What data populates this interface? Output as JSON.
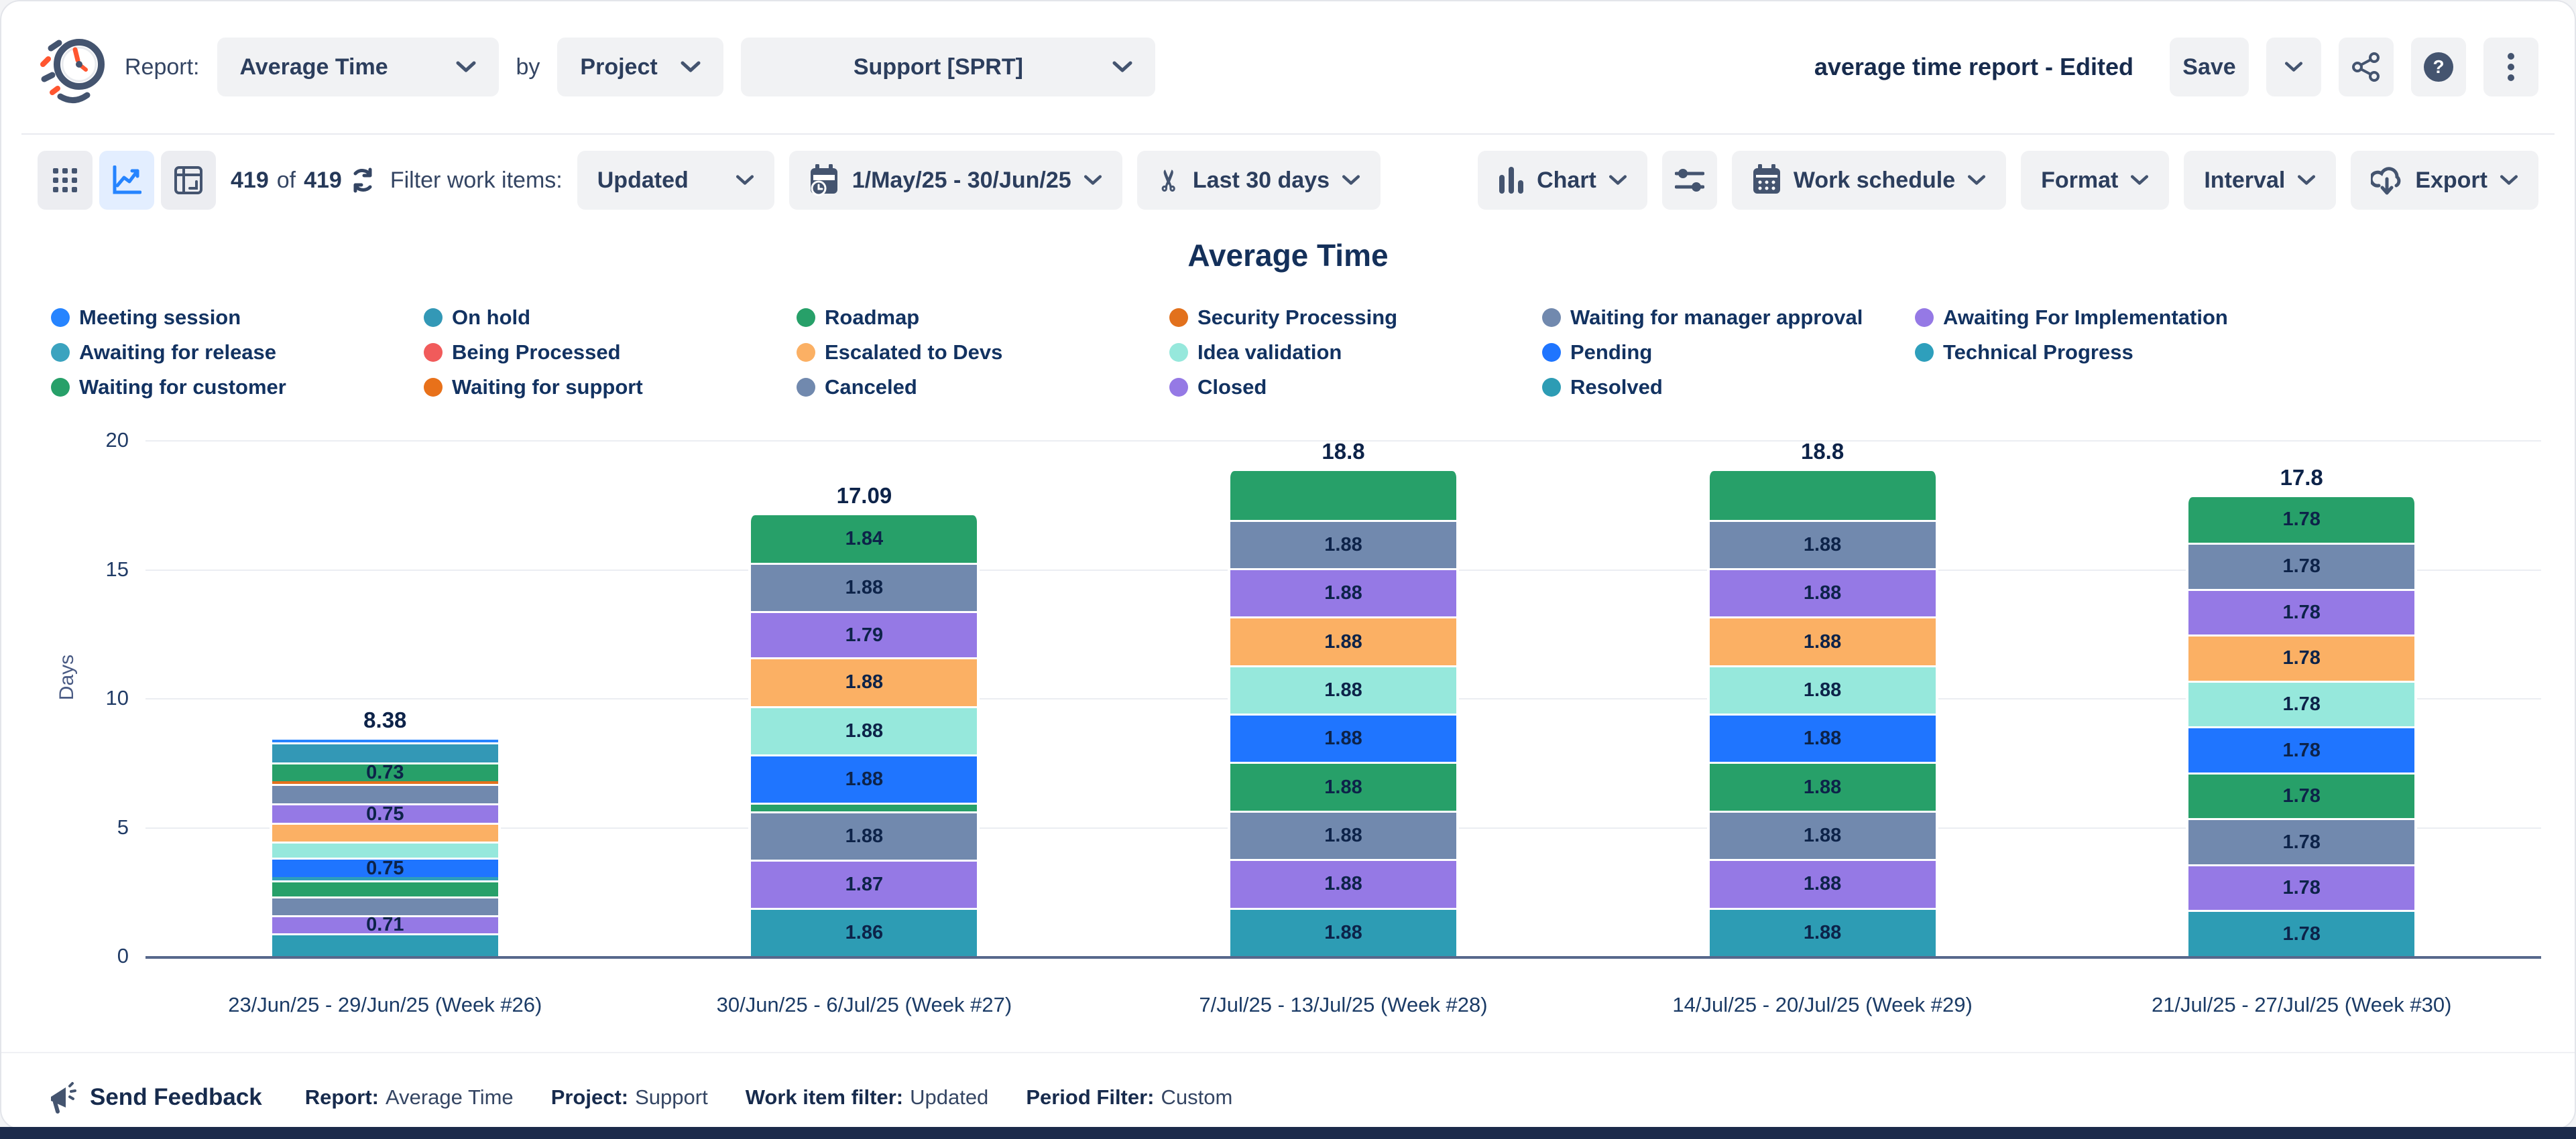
{
  "header": {
    "report_label": "Report:",
    "report_value": "Average Time",
    "by_label": "by",
    "group_value": "Project",
    "project_value": "Support [SPRT]",
    "doc_title": "average time report - Edited",
    "save_label": "Save"
  },
  "toolbar": {
    "count_current": "419",
    "count_of": "of",
    "count_total": "419",
    "filter_label": "Filter work items:",
    "filter_value": "Updated",
    "date_range": "1/May/25 - 30/Jun/25",
    "quick_range": "Last 30 days",
    "chart_label": "Chart",
    "work_schedule_label": "Work schedule",
    "format_label": "Format",
    "interval_label": "Interval",
    "export_label": "Export"
  },
  "footer": {
    "feedback_label": "Send Feedback",
    "items": [
      {
        "label": "Report:",
        "value": "Average Time"
      },
      {
        "label": "Project:",
        "value": "Support"
      },
      {
        "label": "Work item filter:",
        "value": "Updated"
      },
      {
        "label": "Period Filter:",
        "value": "Custom"
      }
    ]
  },
  "chart_data": {
    "type": "bar",
    "stacked": true,
    "title": "Average Time",
    "xlabel": "",
    "ylabel": "Days",
    "ylim": [
      0,
      20
    ],
    "yticks": [
      0,
      5,
      10,
      15,
      20
    ],
    "grid": true,
    "legend_position": "top",
    "categories": [
      "23/Jun/25 - 29/Jun/25 (Week #26)",
      "30/Jun/25 - 6/Jul/25 (Week #27)",
      "7/Jul/25 - 13/Jul/25 (Week #28)",
      "14/Jul/25 - 20/Jul/25 (Week #29)",
      "21/Jul/25 - 27/Jul/25 (Week #30)"
    ],
    "totals": [
      "8.38",
      "17.09",
      "18.8",
      "18.8",
      "17.8"
    ],
    "legend": [
      {
        "label": "Meeting session",
        "color": "#2684FF"
      },
      {
        "label": "On hold",
        "color": "#3398B6"
      },
      {
        "label": "Roadmap",
        "color": "#27A069"
      },
      {
        "label": "Security Processing",
        "color": "#E2711D"
      },
      {
        "label": "Waiting for manager approval",
        "color": "#7189AE"
      },
      {
        "label": "Awaiting For Implementation",
        "color": "#9579E5"
      },
      {
        "label": "Awaiting for release",
        "color": "#3BA3BF"
      },
      {
        "label": "Being Processed",
        "color": "#F15B5B"
      },
      {
        "label": "Escalated to Devs",
        "color": "#FBB064"
      },
      {
        "label": "Idea validation",
        "color": "#96E8DC"
      },
      {
        "label": "Pending",
        "color": "#1F75FF"
      },
      {
        "label": "Technical Progress",
        "color": "#2E9FBC"
      },
      {
        "label": "Waiting for customer",
        "color": "#27A069"
      },
      {
        "label": "Waiting for support",
        "color": "#E8711A"
      },
      {
        "label": "Canceled",
        "color": "#7189AE"
      },
      {
        "label": "Closed",
        "color": "#9579E5"
      },
      {
        "label": "Resolved",
        "color": "#2D9CB4"
      }
    ],
    "bars": [
      {
        "category": "23/Jun/25 - 29/Jun/25 (Week #26)",
        "total_label": "8.38",
        "segments": [
          {
            "status": "Meeting session",
            "value": 0.1,
            "label": ""
          },
          {
            "status": "On hold",
            "value": 0.78,
            "label": ""
          },
          {
            "status": "Roadmap",
            "value": 0.73,
            "label": "0.73"
          },
          {
            "status": "Security Processing",
            "value": 0.09,
            "label": ""
          },
          {
            "status": "Waiting for manager approval",
            "value": 0.77,
            "label": ""
          },
          {
            "status": "Awaiting For Implementation",
            "value": 0.75,
            "label": "0.75"
          },
          {
            "status": "Escalated to Devs",
            "value": 0.72,
            "label": ""
          },
          {
            "status": "Idea validation",
            "value": 0.63,
            "label": ""
          },
          {
            "status": "Pending",
            "value": 0.75,
            "label": "0.75"
          },
          {
            "status": "Technical Progress",
            "value": 0.12,
            "label": ""
          },
          {
            "status": "Waiting for customer",
            "value": 0.63,
            "label": ""
          },
          {
            "status": "Canceled",
            "value": 0.72,
            "label": ""
          },
          {
            "status": "Closed",
            "value": 0.71,
            "label": "0.71"
          },
          {
            "status": "Resolved",
            "value": 0.88,
            "label": ""
          }
        ]
      },
      {
        "category": "30/Jun/25 - 6/Jul/25 (Week #27)",
        "total_label": "17.09",
        "segments": [
          {
            "status": "Roadmap",
            "value": 1.84,
            "label": "1.84"
          },
          {
            "status": "Waiting for manager approval",
            "value": 1.88,
            "label": "1.88"
          },
          {
            "status": "Awaiting For Implementation",
            "value": 1.79,
            "label": "1.79"
          },
          {
            "status": "Escalated to Devs",
            "value": 1.88,
            "label": "1.88"
          },
          {
            "status": "Idea validation",
            "value": 1.88,
            "label": "1.88"
          },
          {
            "status": "Pending",
            "value": 1.88,
            "label": "1.88"
          },
          {
            "status": "Waiting for customer",
            "value": 0.33,
            "label": ""
          },
          {
            "status": "Canceled",
            "value": 1.88,
            "label": "1.88"
          },
          {
            "status": "Closed",
            "value": 1.87,
            "label": "1.87"
          },
          {
            "status": "Resolved",
            "value": 1.86,
            "label": "1.86"
          }
        ]
      },
      {
        "category": "7/Jul/25 - 13/Jul/25 (Week #28)",
        "total_label": "18.8",
        "segments": [
          {
            "status": "Roadmap",
            "value": 1.88,
            "label": ""
          },
          {
            "status": "Waiting for manager approval",
            "value": 1.88,
            "label": "1.88"
          },
          {
            "status": "Awaiting For Implementation",
            "value": 1.88,
            "label": "1.88"
          },
          {
            "status": "Escalated to Devs",
            "value": 1.88,
            "label": "1.88"
          },
          {
            "status": "Idea validation",
            "value": 1.88,
            "label": "1.88"
          },
          {
            "status": "Pending",
            "value": 1.88,
            "label": "1.88"
          },
          {
            "status": "Waiting for customer",
            "value": 1.88,
            "label": "1.88"
          },
          {
            "status": "Canceled",
            "value": 1.88,
            "label": "1.88"
          },
          {
            "status": "Closed",
            "value": 1.88,
            "label": "1.88"
          },
          {
            "status": "Resolved",
            "value": 1.88,
            "label": "1.88"
          }
        ]
      },
      {
        "category": "14/Jul/25 - 20/Jul/25 (Week #29)",
        "total_label": "18.8",
        "segments": [
          {
            "status": "Roadmap",
            "value": 1.88,
            "label": ""
          },
          {
            "status": "Waiting for manager approval",
            "value": 1.88,
            "label": "1.88"
          },
          {
            "status": "Awaiting For Implementation",
            "value": 1.88,
            "label": "1.88"
          },
          {
            "status": "Escalated to Devs",
            "value": 1.88,
            "label": "1.88"
          },
          {
            "status": "Idea validation",
            "value": 1.88,
            "label": "1.88"
          },
          {
            "status": "Pending",
            "value": 1.88,
            "label": "1.88"
          },
          {
            "status": "Waiting for customer",
            "value": 1.88,
            "label": "1.88"
          },
          {
            "status": "Canceled",
            "value": 1.88,
            "label": "1.88"
          },
          {
            "status": "Closed",
            "value": 1.88,
            "label": "1.88"
          },
          {
            "status": "Resolved",
            "value": 1.88,
            "label": "1.88"
          }
        ]
      },
      {
        "category": "21/Jul/25 - 27/Jul/25 (Week #30)",
        "total_label": "17.8",
        "segments": [
          {
            "status": "Roadmap",
            "value": 1.78,
            "label": "1.78"
          },
          {
            "status": "Waiting for manager approval",
            "value": 1.78,
            "label": "1.78"
          },
          {
            "status": "Awaiting For Implementation",
            "value": 1.78,
            "label": "1.78"
          },
          {
            "status": "Escalated to Devs",
            "value": 1.78,
            "label": "1.78"
          },
          {
            "status": "Idea validation",
            "value": 1.78,
            "label": "1.78"
          },
          {
            "status": "Pending",
            "value": 1.78,
            "label": "1.78"
          },
          {
            "status": "Waiting for customer",
            "value": 1.78,
            "label": "1.78"
          },
          {
            "status": "Canceled",
            "value": 1.78,
            "label": "1.78"
          },
          {
            "status": "Closed",
            "value": 1.78,
            "label": "1.78"
          },
          {
            "status": "Resolved",
            "value": 1.78,
            "label": "1.78"
          }
        ]
      }
    ]
  }
}
